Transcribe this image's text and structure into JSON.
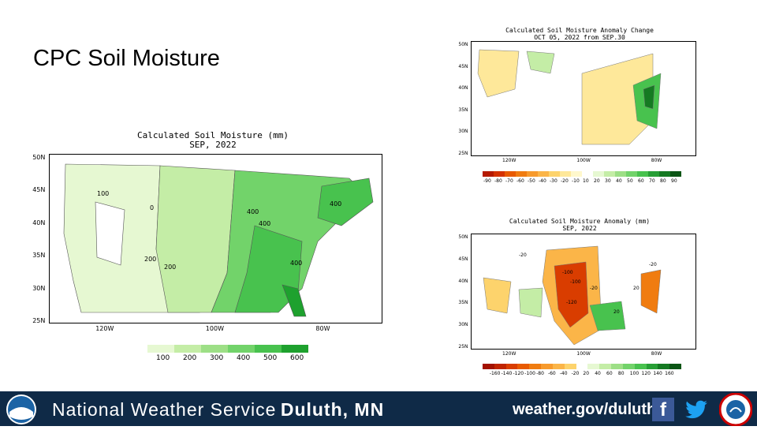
{
  "slide": {
    "title": "CPC Soil Moisture"
  },
  "footer": {
    "org_prefix": "National Weather Service",
    "office": "Duluth, MN",
    "url": "weather.gov/duluth",
    "icons": [
      "noaa-logo",
      "facebook-icon",
      "twitter-icon",
      "nws-logo"
    ]
  },
  "chart_data": [
    {
      "type": "heatmap",
      "title": "Calculated Soil Moisture (mm)",
      "subtitle": "SEP, 2022",
      "lat_ticks": [
        "50N",
        "45N",
        "40N",
        "35N",
        "30N",
        "25N"
      ],
      "lon_ticks": [
        "120W",
        "100W",
        "80W"
      ],
      "contour_labels": [
        "100",
        "0",
        "200",
        "200",
        "400",
        "400",
        "400",
        "400"
      ],
      "colorbar": {
        "labels": [
          "100",
          "200",
          "300",
          "400",
          "500",
          "600"
        ],
        "colors": [
          "#e6f8d2",
          "#c4eda6",
          "#9ddf86",
          "#72d36a",
          "#48c24e",
          "#1ea12e"
        ]
      }
    },
    {
      "type": "heatmap",
      "title": "Calculated Soil Moisture Anomaly Change",
      "subtitle": "OCT 05, 2022 from SEP.30",
      "lat_ticks": [
        "50N",
        "45N",
        "40N",
        "35N",
        "30N",
        "25N"
      ],
      "lon_ticks": [
        "120W",
        "100W",
        "80W"
      ],
      "colorbar": {
        "labels": [
          "-90",
          "-80",
          "-70",
          "-60",
          "-50",
          "-40",
          "-30",
          "-20",
          "-10",
          "10",
          "20",
          "30",
          "40",
          "50",
          "60",
          "70",
          "80",
          "90"
        ],
        "colors": [
          "#b51a00",
          "#d43200",
          "#e85a00",
          "#f07c10",
          "#f79a2c",
          "#fbb548",
          "#fdd36c",
          "#fee89a",
          "#fff8cc",
          "#ffffff",
          "#e6f8d2",
          "#c4eda6",
          "#9ddf86",
          "#72d36a",
          "#48c24e",
          "#279f35",
          "#157a22",
          "#0b5515"
        ]
      }
    },
    {
      "type": "heatmap",
      "title": "Calculated Soil Moisture Anomaly (mm)",
      "subtitle": "SEP, 2022",
      "lat_ticks": [
        "50N",
        "45N",
        "40N",
        "35N",
        "30N",
        "25N"
      ],
      "lon_ticks": [
        "120W",
        "100W",
        "80W"
      ],
      "contour_labels": [
        "-20",
        "-100",
        "-100",
        "-120",
        "-20",
        "20",
        "20",
        "-20"
      ],
      "colorbar": {
        "labels": [
          "-160",
          "-140",
          "-120",
          "-100",
          "-80",
          "-60",
          "-40",
          "-20",
          "20",
          "40",
          "60",
          "80",
          "100",
          "120",
          "140",
          "160"
        ],
        "colors": [
          "#a31200",
          "#c02400",
          "#d93d00",
          "#e85a00",
          "#f07c10",
          "#f79a2c",
          "#fbb548",
          "#fdd36c",
          "#ffffff",
          "#e6f8d2",
          "#c4eda6",
          "#9ddf86",
          "#72d36a",
          "#48c24e",
          "#279f35",
          "#157a22",
          "#0b5515"
        ]
      }
    }
  ]
}
